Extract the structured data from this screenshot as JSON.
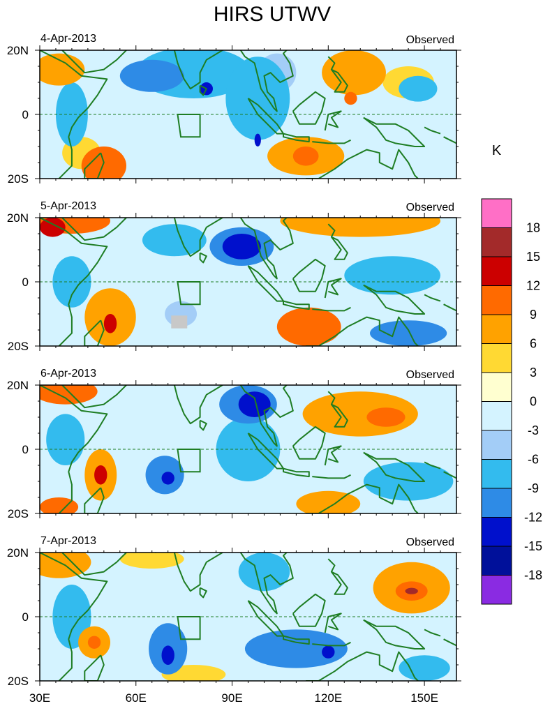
{
  "title": "HIRS UTWV",
  "colors": {
    "frame": "#000000",
    "coast": "#1e7d23",
    "box": "#1e7d23",
    "equator": "#1e7d23",
    "missing": "#c8c8c8"
  },
  "chart_data": {
    "type": "heatmap",
    "variable": "HIRS UTWV",
    "units": "K",
    "x_ticks": [
      "30E",
      "60E",
      "90E",
      "120E",
      "150E"
    ],
    "x_tick_values": [
      30,
      60,
      90,
      120,
      150
    ],
    "xlim": [
      30,
      160
    ],
    "y_ticks": [
      "20N",
      "0",
      "20S"
    ],
    "y_tick_values": [
      20,
      0,
      -20
    ],
    "ylim": [
      -20,
      20
    ],
    "box_region": {
      "lon": [
        73,
        80
      ],
      "lat": [
        -7,
        0
      ]
    },
    "colorbar": {
      "label": "K",
      "levels": [
        "18",
        "15",
        "12",
        "9",
        "6",
        "3",
        "0",
        "-3",
        "-6",
        "-9",
        "-12",
        "-15",
        "-18"
      ],
      "colors": [
        "#ff6fc6",
        "#a32a2a",
        "#cc0000",
        "#ff6a00",
        "#ffa200",
        "#ffd933",
        "#ffffd0",
        "#d4f3ff",
        "#a3cdf7",
        "#33bbee",
        "#2e8be6",
        "#0010cc",
        "#00109a",
        "#8a2be2"
      ]
    },
    "panels": [
      {
        "date": "4-Apr-2013",
        "label": "Observed",
        "features": [
          {
            "lon": 50,
            "lat": -16,
            "rx": 7,
            "ry": 6,
            "level": 10
          },
          {
            "lon": 43,
            "lat": -12,
            "rx": 6,
            "ry": 5,
            "level": 6
          },
          {
            "lon": 113,
            "lat": -13,
            "rx": 12,
            "ry": 6,
            "level": 9
          },
          {
            "lon": 113,
            "lat": -13,
            "rx": 4,
            "ry": 3,
            "level": 11
          },
          {
            "lon": 128,
            "lat": 13,
            "rx": 10,
            "ry": 7,
            "level": 7
          },
          {
            "lon": 127,
            "lat": 5,
            "rx": 2,
            "ry": 2,
            "level": 10
          },
          {
            "lon": 145,
            "lat": 10,
            "rx": 8,
            "ry": 5,
            "level": 6
          },
          {
            "lon": 36,
            "lat": 14,
            "rx": 8,
            "ry": 5,
            "level": 7
          },
          {
            "lon": 78,
            "lat": 13,
            "rx": 18,
            "ry": 8,
            "level": -7
          },
          {
            "lon": 65,
            "lat": 12,
            "rx": 10,
            "ry": 5,
            "level": -9
          },
          {
            "lon": 98,
            "lat": 5,
            "rx": 10,
            "ry": 13,
            "level": -7
          },
          {
            "lon": 82,
            "lat": 8,
            "rx": 2,
            "ry": 2,
            "level": -12
          },
          {
            "lon": 98,
            "lat": -8,
            "rx": 1,
            "ry": 2,
            "level": -13
          },
          {
            "lon": 148,
            "lat": 8,
            "rx": 6,
            "ry": 4,
            "level": -6
          },
          {
            "lon": 40,
            "lat": 0,
            "rx": 5,
            "ry": 10,
            "level": -6
          },
          {
            "lon": 104,
            "lat": 13,
            "rx": 6,
            "ry": 6,
            "level": -4
          }
        ]
      },
      {
        "date": "5-Apr-2013",
        "label": "Observed",
        "features": [
          {
            "lon": 52,
            "lat": -11,
            "rx": 8,
            "ry": 9,
            "level": 9
          },
          {
            "lon": 52,
            "lat": -13,
            "rx": 2,
            "ry": 3,
            "level": 13
          },
          {
            "lon": 114,
            "lat": -14,
            "rx": 10,
            "ry": 6,
            "level": 10
          },
          {
            "lon": 40,
            "lat": 19,
            "rx": 12,
            "ry": 4,
            "level": 12
          },
          {
            "lon": 34,
            "lat": 17,
            "rx": 4,
            "ry": 3,
            "level": 15
          },
          {
            "lon": 130,
            "lat": 19,
            "rx": 25,
            "ry": 5,
            "level": 7
          },
          {
            "lon": 93,
            "lat": 11,
            "rx": 10,
            "ry": 6,
            "level": -9
          },
          {
            "lon": 93,
            "lat": 11,
            "rx": 6,
            "ry": 4,
            "level": -13
          },
          {
            "lon": 72,
            "lat": 13,
            "rx": 10,
            "ry": 5,
            "level": -7
          },
          {
            "lon": 140,
            "lat": 2,
            "rx": 15,
            "ry": 6,
            "level": -7
          },
          {
            "lon": 40,
            "lat": 0,
            "rx": 6,
            "ry": 8,
            "level": -6
          },
          {
            "lon": 74,
            "lat": -10,
            "rx": 5,
            "ry": 4,
            "level": -5
          },
          {
            "lon": 145,
            "lat": -16,
            "rx": 12,
            "ry": 4,
            "level": -9
          }
        ]
      },
      {
        "date": "6-Apr-2013",
        "label": "Observed",
        "features": [
          {
            "lon": 49,
            "lat": -8,
            "rx": 5,
            "ry": 8,
            "level": 9
          },
          {
            "lon": 49,
            "lat": -8,
            "rx": 2,
            "ry": 3,
            "level": 13
          },
          {
            "lon": 38,
            "lat": 18,
            "rx": 10,
            "ry": 4,
            "level": 12
          },
          {
            "lon": 36,
            "lat": -18,
            "rx": 6,
            "ry": 3,
            "level": 12
          },
          {
            "lon": 130,
            "lat": 11,
            "rx": 18,
            "ry": 7,
            "level": 7
          },
          {
            "lon": 138,
            "lat": 10,
            "rx": 6,
            "ry": 3,
            "level": 10
          },
          {
            "lon": 120,
            "lat": -17,
            "rx": 10,
            "ry": 4,
            "level": 7
          },
          {
            "lon": 95,
            "lat": 14,
            "rx": 9,
            "ry": 6,
            "level": -10
          },
          {
            "lon": 97,
            "lat": 14,
            "rx": 5,
            "ry": 4,
            "level": -13
          },
          {
            "lon": 69,
            "lat": -8,
            "rx": 6,
            "ry": 6,
            "level": -9
          },
          {
            "lon": 70,
            "lat": -9,
            "rx": 2,
            "ry": 2,
            "level": -13
          },
          {
            "lon": 95,
            "lat": 0,
            "rx": 10,
            "ry": 10,
            "level": -6
          },
          {
            "lon": 145,
            "lat": -10,
            "rx": 14,
            "ry": 6,
            "level": -8
          },
          {
            "lon": 38,
            "lat": 3,
            "rx": 6,
            "ry": 8,
            "level": -7
          }
        ]
      },
      {
        "date": "7-Apr-2013",
        "label": "Observed",
        "features": [
          {
            "lon": 47,
            "lat": -8,
            "rx": 5,
            "ry": 5,
            "level": 9
          },
          {
            "lon": 47,
            "lat": -8,
            "rx": 2,
            "ry": 2,
            "level": 12
          },
          {
            "lon": 146,
            "lat": 9,
            "rx": 12,
            "ry": 8,
            "level": 8
          },
          {
            "lon": 146,
            "lat": 8,
            "rx": 5,
            "ry": 3,
            "level": 12
          },
          {
            "lon": 146,
            "lat": 8,
            "rx": 2,
            "ry": 1,
            "level": 16
          },
          {
            "lon": 36,
            "lat": 17,
            "rx": 10,
            "ry": 5,
            "level": 7
          },
          {
            "lon": 65,
            "lat": 18,
            "rx": 10,
            "ry": 3,
            "level": 5
          },
          {
            "lon": 78,
            "lat": -18,
            "rx": 10,
            "ry": 3,
            "level": 6
          },
          {
            "lon": 70,
            "lat": -10,
            "rx": 6,
            "ry": 8,
            "level": -9
          },
          {
            "lon": 70,
            "lat": -12,
            "rx": 2,
            "ry": 3,
            "level": -13
          },
          {
            "lon": 110,
            "lat": -10,
            "rx": 16,
            "ry": 6,
            "level": -9
          },
          {
            "lon": 120,
            "lat": -11,
            "rx": 2,
            "ry": 2,
            "level": -12
          },
          {
            "lon": 100,
            "lat": 14,
            "rx": 8,
            "ry": 6,
            "level": -8
          },
          {
            "lon": 40,
            "lat": 0,
            "rx": 6,
            "ry": 10,
            "level": -6
          },
          {
            "lon": 150,
            "lat": -16,
            "rx": 8,
            "ry": 4,
            "level": -8
          }
        ]
      }
    ]
  }
}
